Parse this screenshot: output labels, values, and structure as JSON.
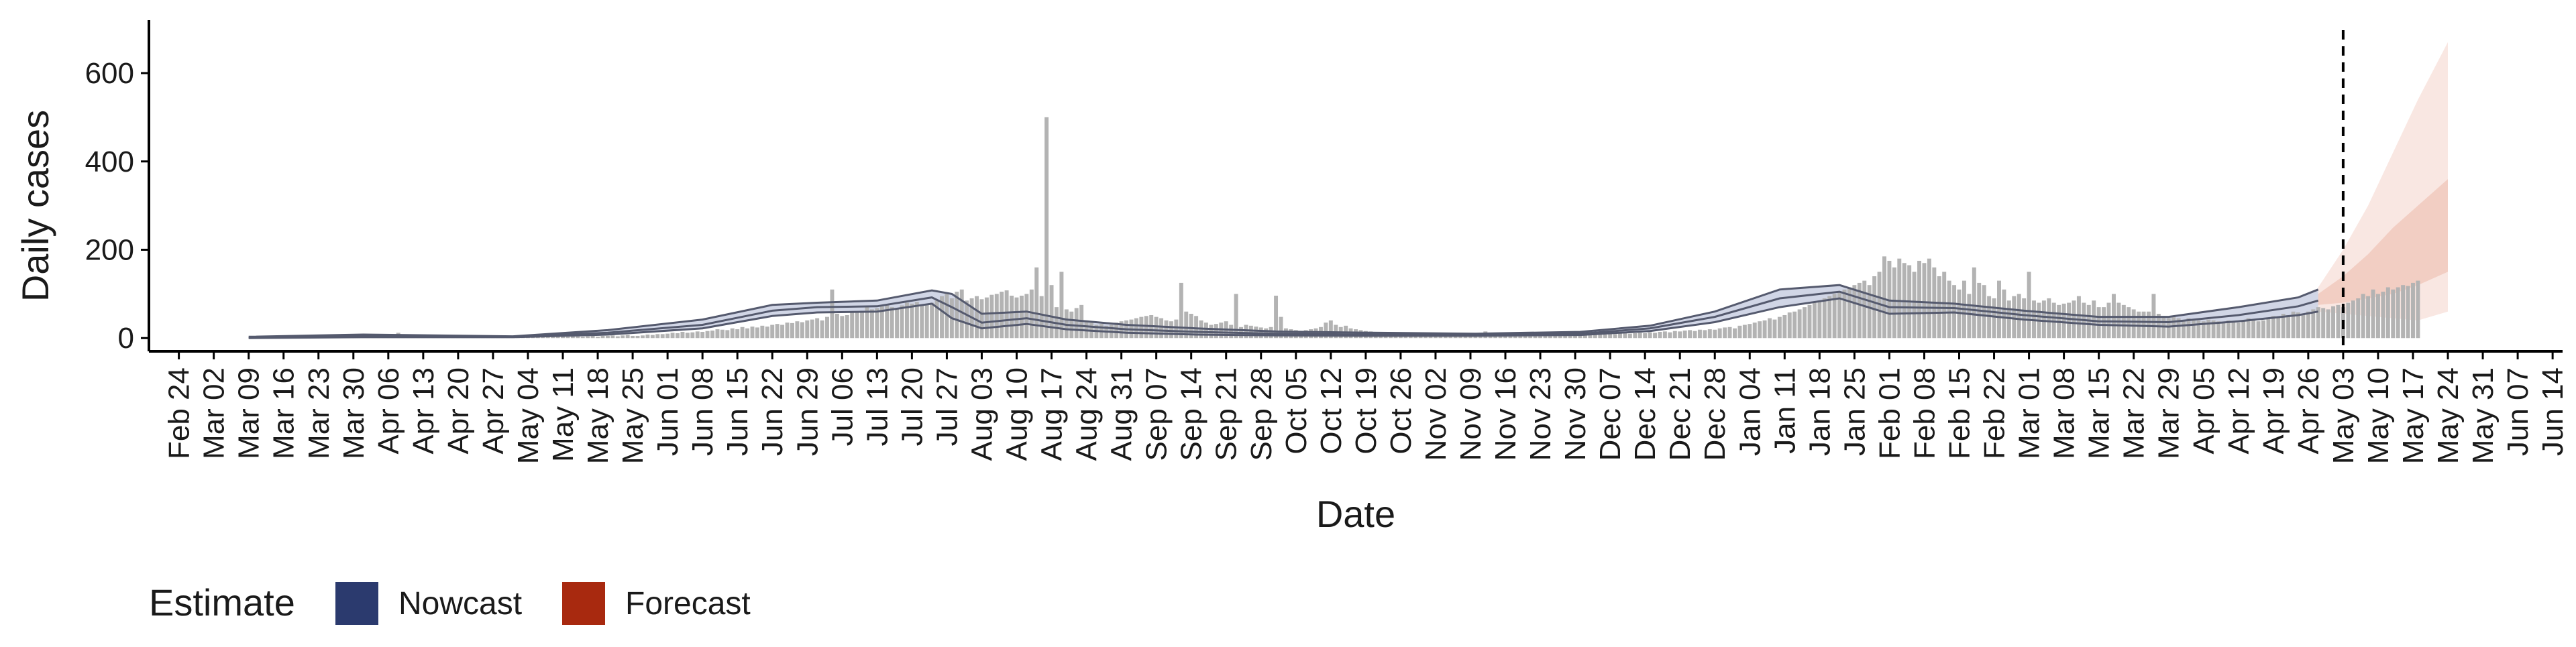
{
  "chart_data": {
    "type": "bar",
    "xlabel": "Date",
    "ylabel": "Daily cases",
    "ylim": [
      -30,
      720
    ],
    "xlim": [
      "2020-02-18",
      "2021-06-16"
    ],
    "y_ticks": [
      0,
      200,
      400,
      600
    ],
    "x_tick_labels": [
      "Feb 24",
      "Mar 02",
      "Mar 09",
      "Mar 16",
      "Mar 23",
      "Mar 30",
      "Apr 06",
      "Apr 13",
      "Apr 20",
      "Apr 27",
      "May 04",
      "May 11",
      "May 18",
      "May 25",
      "Jun 01",
      "Jun 08",
      "Jun 15",
      "Jun 22",
      "Jun 29",
      "Jul 06",
      "Jul 13",
      "Jul 20",
      "Jul 27",
      "Aug 03",
      "Aug 10",
      "Aug 17",
      "Aug 24",
      "Aug 31",
      "Sep 07",
      "Sep 14",
      "Sep 21",
      "Sep 28",
      "Oct 05",
      "Oct 12",
      "Oct 19",
      "Oct 26",
      "Nov 02",
      "Nov 09",
      "Nov 16",
      "Nov 23",
      "Nov 30",
      "Dec 07",
      "Dec 14",
      "Dec 21",
      "Dec 28",
      "Jan 04",
      "Jan 11",
      "Jan 18",
      "Jan 25",
      "Feb 01",
      "Feb 08",
      "Feb 15",
      "Feb 22",
      "Mar 01",
      "Mar 08",
      "Mar 15",
      "Mar 22",
      "Mar 29",
      "Apr 05",
      "Apr 12",
      "Apr 19",
      "Apr 26",
      "May 03",
      "May 10",
      "May 17",
      "May 24",
      "May 31",
      "Jun 07",
      "Jun 14"
    ],
    "x_tick_start": "2020-02-24",
    "x_tick_step_days": 7,
    "forecast_start": "2021-05-03",
    "grid": false,
    "legend_placement": "bottom-left",
    "legend": {
      "title": "Estimate",
      "items": [
        {
          "label": "Nowcast",
          "color": "#2b3a6e"
        },
        {
          "label": "Forecast",
          "color": "#a8290f"
        }
      ]
    },
    "bar_color": "#b3b3b3",
    "estimate_line_color": "#555a6e",
    "nowcast_band_color": "#9aa3c8",
    "forecast_band_color": "#e8a997",
    "daily_cases": {
      "start": "2020-03-09",
      "values": [
        0,
        0,
        0,
        0,
        0,
        0,
        0,
        1,
        1,
        1,
        1,
        2,
        1,
        2,
        2,
        3,
        2,
        3,
        3,
        4,
        5,
        4,
        6,
        5,
        4,
        5,
        6,
        6,
        7,
        8,
        12,
        3,
        6,
        7,
        5,
        4,
        3,
        5,
        4,
        6,
        4,
        5,
        6,
        4,
        5,
        5,
        4,
        6,
        5,
        4,
        4,
        4,
        5,
        3,
        4,
        3,
        4,
        4,
        3,
        2,
        3,
        3,
        4,
        4,
        3,
        5,
        4,
        3,
        4,
        5,
        3,
        5,
        5,
        6,
        4,
        6,
        7,
        5,
        5,
        6,
        8,
        7,
        9,
        9,
        10,
        12,
        11,
        14,
        12,
        13,
        15,
        14,
        16,
        17,
        20,
        19,
        18,
        22,
        20,
        25,
        22,
        26,
        24,
        28,
        26,
        30,
        32,
        30,
        35,
        34,
        38,
        36,
        40,
        42,
        45,
        40,
        48,
        110,
        55,
        50,
        52,
        60,
        58,
        62,
        70,
        65,
        68,
        72,
        75,
        70,
        68,
        74,
        80,
        78,
        82,
        76,
        75,
        80,
        85,
        95,
        100,
        90,
        105,
        110,
        85,
        90,
        95,
        88,
        92,
        98,
        100,
        105,
        108,
        96,
        92,
        96,
        100,
        110,
        160,
        95,
        500,
        120,
        70,
        150,
        65,
        60,
        68,
        75,
        40,
        35,
        30,
        32,
        28,
        30,
        35,
        38,
        40,
        42,
        45,
        48,
        50,
        52,
        48,
        45,
        40,
        38,
        42,
        125,
        60,
        55,
        50,
        40,
        35,
        30,
        32,
        35,
        38,
        30,
        100,
        25,
        30,
        28,
        26,
        24,
        22,
        25,
        96,
        48,
        22,
        20,
        18,
        16,
        18,
        20,
        22,
        25,
        35,
        40,
        30,
        25,
        28,
        22,
        20,
        18,
        16,
        15,
        14,
        14,
        13,
        12,
        12,
        12,
        11,
        10,
        10,
        11,
        12,
        10,
        9,
        9,
        10,
        11,
        10,
        9,
        8,
        9,
        10,
        12,
        15,
        10,
        9,
        8,
        9,
        10,
        9,
        8,
        8,
        9,
        10,
        9,
        8,
        8,
        9,
        10,
        9,
        8,
        7,
        8,
        9,
        10,
        9,
        9,
        8,
        10,
        9,
        11,
        12,
        10,
        11,
        12,
        11,
        13,
        12,
        14,
        15,
        13,
        16,
        15,
        17,
        18,
        16,
        19,
        18,
        20,
        19,
        22,
        24,
        25,
        22,
        28,
        30,
        32,
        35,
        38,
        40,
        45,
        42,
        48,
        52,
        58,
        60,
        65,
        70,
        75,
        80,
        85,
        90,
        95,
        100,
        105,
        110,
        115,
        120,
        125,
        130,
        120,
        140,
        150,
        185,
        175,
        160,
        180,
        170,
        165,
        150,
        175,
        170,
        180,
        160,
        140,
        150,
        130,
        120,
        110,
        130,
        100,
        160,
        125,
        120,
        95,
        90,
        130,
        110,
        85,
        95,
        100,
        90,
        150,
        85,
        80,
        85,
        90,
        80,
        75,
        78,
        80,
        85,
        95,
        80,
        75,
        85,
        70,
        70,
        80,
        100,
        80,
        75,
        70,
        65,
        60,
        60,
        60,
        100,
        55,
        50,
        45,
        50,
        45,
        40,
        45,
        42,
        40,
        38,
        42,
        40,
        38,
        35,
        40,
        38,
        35,
        40,
        45,
        42,
        38,
        40,
        45,
        50,
        48,
        55,
        52,
        60,
        58,
        55,
        60,
        65,
        70,
        68,
        65,
        72,
        75,
        70,
        80,
        85,
        90,
        100,
        95,
        110,
        100,
        105,
        115,
        110,
        115,
        120,
        118,
        125,
        130
      ]
    },
    "nowcast": {
      "dates": [
        "2020-03-09",
        "2020-04-01",
        "2020-05-01",
        "2020-05-20",
        "2020-06-08",
        "2020-06-22",
        "2020-07-01",
        "2020-07-13",
        "2020-07-24",
        "2020-07-28",
        "2020-08-03",
        "2020-08-12",
        "2020-08-20",
        "2020-09-01",
        "2020-09-15",
        "2020-10-01",
        "2020-10-20",
        "2020-11-10",
        "2020-12-01",
        "2020-12-15",
        "2020-12-28",
        "2021-01-10",
        "2021-01-22",
        "2021-02-01",
        "2021-02-14",
        "2021-02-28",
        "2021-03-15",
        "2021-03-29",
        "2021-04-12",
        "2021-04-24",
        "2021-04-28"
      ],
      "upper": [
        3,
        8,
        4,
        18,
        42,
        75,
        80,
        85,
        108,
        100,
        55,
        60,
        42,
        30,
        22,
        15,
        12,
        10,
        14,
        28,
        60,
        110,
        120,
        85,
        78,
        62,
        48,
        48,
        70,
        92,
        110
      ],
      "median": [
        1,
        5,
        3,
        12,
        30,
        62,
        70,
        72,
        92,
        70,
        35,
        45,
        30,
        20,
        14,
        10,
        8,
        7,
        10,
        22,
        48,
        90,
        105,
        70,
        68,
        52,
        38,
        36,
        52,
        72,
        85
      ],
      "lower": [
        0,
        2,
        2,
        8,
        22,
        50,
        58,
        60,
        78,
        45,
        22,
        32,
        20,
        12,
        8,
        6,
        5,
        5,
        7,
        16,
        36,
        70,
        90,
        55,
        58,
        42,
        30,
        26,
        38,
        52,
        60
      ]
    },
    "forecast": {
      "dates": [
        "2021-04-28",
        "2021-05-03",
        "2021-05-08",
        "2021-05-13",
        "2021-05-18",
        "2021-05-24"
      ],
      "outer_upper": [
        115,
        200,
        300,
        420,
        540,
        670
      ],
      "inner_upper": [
        100,
        140,
        190,
        250,
        300,
        360
      ],
      "median": [
        85,
        100,
        115,
        130,
        145,
        160
      ],
      "inner_lower": [
        75,
        80,
        90,
        100,
        120,
        150
      ],
      "outer_lower": [
        60,
        55,
        50,
        45,
        40,
        60
      ]
    }
  }
}
